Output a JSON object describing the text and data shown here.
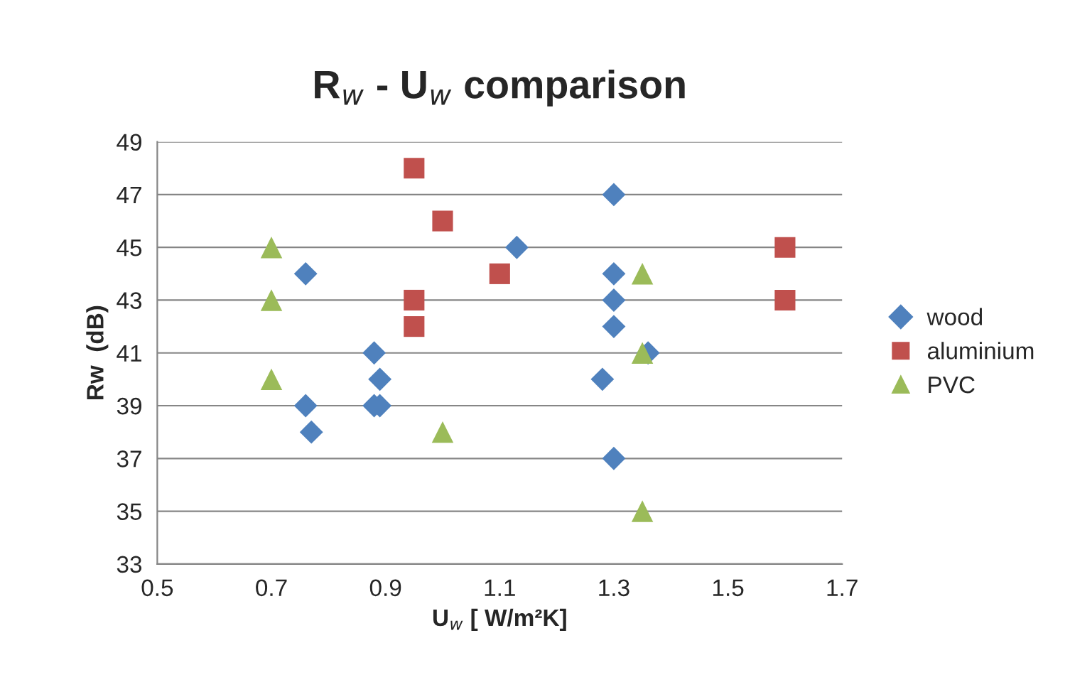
{
  "chart_data": {
    "type": "scatter",
    "title": "R$_{w}$ - U$_{w}$ comparison",
    "xlabel": "U$_{w}$ [ W/m²K]",
    "ylabel": "Rw  (dB)",
    "series": [
      {
        "name": "wood",
        "color": "#4f81bd",
        "marker": "diamond",
        "x": [
          0.76,
          0.76,
          0.77,
          0.88,
          0.89,
          0.88,
          0.89,
          1.13,
          1.3,
          1.3,
          1.3,
          1.3,
          1.3,
          1.28,
          1.36
        ],
        "values": [
          44,
          39,
          38,
          41,
          40,
          39,
          39,
          45,
          47,
          44,
          43,
          42,
          37,
          40,
          41
        ]
      },
      {
        "name": "aluminium",
        "color": "#c0504d",
        "marker": "square",
        "x": [
          0.95,
          1.0,
          0.95,
          0.95,
          1.1,
          1.6,
          1.6
        ],
        "values": [
          48,
          46,
          43,
          42,
          44,
          45,
          43
        ]
      },
      {
        "name": "PVC",
        "color": "#9bbb59",
        "marker": "triangle",
        "x": [
          0.7,
          0.7,
          0.7,
          1.0,
          1.35,
          1.35,
          1.35
        ],
        "values": [
          45,
          43,
          40,
          38,
          44,
          41,
          35
        ]
      }
    ],
    "xlim": [
      0.5,
      1.7
    ],
    "xticks": [
      0.5,
      0.7,
      0.9,
      1.1,
      1.3,
      1.5,
      1.7
    ],
    "ylim": [
      33,
      49
    ],
    "yticks": [
      33,
      35,
      37,
      39,
      41,
      43,
      45,
      47,
      49
    ],
    "grid": "y",
    "legend": "right"
  }
}
